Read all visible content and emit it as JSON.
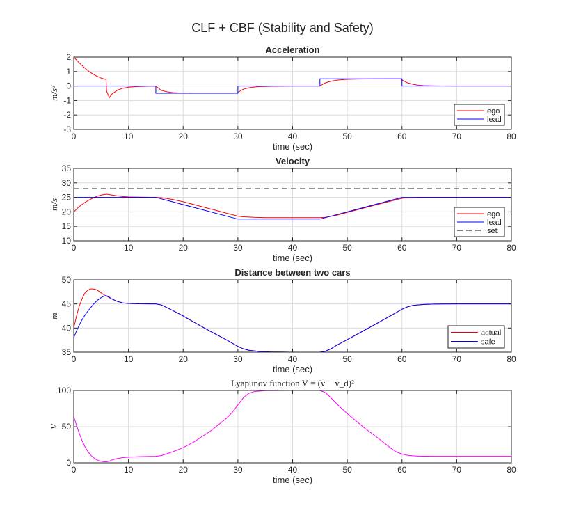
{
  "figure_title": "CLF + CBF (Stability and Safety)",
  "colors": {
    "ego": "#ff0000",
    "lead": "#0000ff",
    "set": "#555555",
    "lyapunov": "#ff00ff"
  },
  "chart_data": [
    {
      "type": "line",
      "title": "Acceleration",
      "xlabel": "time (sec)",
      "ylabel": "m/s²",
      "xlim": [
        0,
        80
      ],
      "ylim": [
        -3,
        2
      ],
      "xticks": [
        "0",
        "10",
        "20",
        "30",
        "40",
        "50",
        "60",
        "70",
        "80"
      ],
      "yticks": [
        "-3",
        "-2",
        "-1",
        "0",
        "1",
        "2"
      ],
      "grid": true,
      "legend_position": "bottom-right",
      "series": [
        {
          "name": "ego",
          "color": "#ff0000",
          "x": [
            0,
            1,
            2,
            3,
            4,
            5,
            5.9,
            6,
            6.5,
            7,
            8,
            9,
            10,
            11,
            12,
            13,
            14,
            15,
            15.5,
            16,
            17,
            18,
            19,
            20,
            22,
            25,
            28,
            29.9,
            30,
            30.5,
            31,
            32,
            33,
            34,
            36,
            40,
            44,
            45,
            45.5,
            46,
            47,
            48,
            49,
            50,
            52,
            55,
            58,
            59.9,
            60,
            60.5,
            61,
            62,
            63,
            64,
            66,
            70,
            75,
            80
          ],
          "y": [
            2.0,
            1.6,
            1.25,
            0.95,
            0.72,
            0.55,
            0.45,
            -0.35,
            -0.8,
            -0.55,
            -0.28,
            -0.15,
            -0.08,
            -0.05,
            -0.03,
            -0.02,
            -0.01,
            0.0,
            -0.15,
            -0.3,
            -0.4,
            -0.45,
            -0.48,
            -0.49,
            -0.5,
            -0.5,
            -0.5,
            -0.5,
            -0.45,
            -0.32,
            -0.22,
            -0.12,
            -0.07,
            -0.04,
            -0.02,
            0.0,
            0.0,
            0.0,
            0.12,
            0.22,
            0.33,
            0.4,
            0.44,
            0.46,
            0.48,
            0.49,
            0.5,
            0.5,
            0.42,
            0.32,
            0.22,
            0.12,
            0.06,
            0.03,
            0.01,
            0.0,
            0.0,
            0.0
          ]
        },
        {
          "name": "lead",
          "color": "#0000ff",
          "x": [
            0,
            15,
            15,
            30,
            30,
            45,
            45,
            60,
            60,
            80
          ],
          "y": [
            0,
            0,
            -0.5,
            -0.5,
            0,
            0,
            0.5,
            0.5,
            0,
            0
          ]
        }
      ]
    },
    {
      "type": "line",
      "title": "Velocity",
      "xlabel": "time (sec)",
      "ylabel": "m/s",
      "xlim": [
        0,
        80
      ],
      "ylim": [
        10,
        35
      ],
      "xticks": [
        "0",
        "10",
        "20",
        "30",
        "40",
        "50",
        "60",
        "70",
        "80"
      ],
      "yticks": [
        "10",
        "15",
        "20",
        "25",
        "30",
        "35"
      ],
      "grid": true,
      "legend_position": "bottom-right",
      "series": [
        {
          "name": "ego",
          "color": "#ff0000",
          "x": [
            0,
            1,
            2,
            3,
            4,
            5,
            6,
            7,
            8,
            9,
            10,
            11,
            13,
            15,
            16,
            18,
            20,
            25,
            30,
            31,
            33,
            35,
            40,
            45,
            46,
            48,
            50,
            55,
            60,
            61,
            63,
            65,
            70,
            80
          ],
          "y": [
            20,
            21.8,
            23.2,
            24.3,
            25.2,
            25.8,
            26.1,
            25.8,
            25.5,
            25.3,
            25.15,
            25.1,
            25.05,
            25.0,
            24.9,
            24.3,
            23.5,
            21.0,
            18.5,
            18.3,
            18.1,
            18.0,
            18.0,
            18.0,
            18.1,
            18.8,
            19.8,
            22.3,
            24.7,
            24.85,
            24.95,
            25.0,
            25.0,
            25.0
          ]
        },
        {
          "name": "lead",
          "color": "#0000ff",
          "x": [
            0,
            15,
            30,
            45,
            60,
            80
          ],
          "y": [
            25,
            25,
            17.5,
            17.5,
            25,
            25
          ]
        },
        {
          "name": "set",
          "color": "#555555",
          "dashed": true,
          "x": [
            0,
            80
          ],
          "y": [
            28,
            28
          ]
        }
      ]
    },
    {
      "type": "line",
      "title": "Distance between two cars",
      "xlabel": "time (sec)",
      "ylabel": "m",
      "xlim": [
        0,
        80
      ],
      "ylim": [
        35,
        50
      ],
      "xticks": [
        "0",
        "10",
        "20",
        "30",
        "40",
        "50",
        "60",
        "70",
        "80"
      ],
      "yticks": [
        "35",
        "40",
        "45",
        "50"
      ],
      "grid": true,
      "legend_position": "bottom-right",
      "series": [
        {
          "name": "actual",
          "color": "#ff0000",
          "x": [
            0,
            0.5,
            1,
            1.5,
            2,
            2.5,
            3,
            3.5,
            4,
            4.5,
            5,
            5.5,
            6,
            6.5,
            7,
            8,
            9,
            10,
            12,
            14,
            15,
            16,
            18,
            20,
            22,
            25,
            28,
            30,
            31,
            32,
            34,
            36,
            40,
            44,
            45,
            46,
            47,
            48,
            50,
            55,
            58,
            60,
            61,
            62,
            64,
            66,
            70,
            80
          ],
          "y": [
            40.0,
            42.5,
            44.5,
            46.0,
            47.2,
            47.8,
            48.1,
            48.1,
            48.0,
            47.7,
            47.3,
            46.9,
            46.6,
            46.3,
            46.0,
            45.5,
            45.2,
            45.1,
            45.02,
            45.0,
            45.0,
            44.8,
            43.7,
            42.5,
            41.2,
            39.3,
            37.5,
            36.2,
            35.7,
            35.4,
            35.15,
            35.05,
            35.0,
            35.0,
            35.0,
            35.2,
            35.7,
            36.4,
            37.6,
            40.7,
            42.6,
            43.9,
            44.4,
            44.7,
            44.9,
            44.97,
            45.0,
            45.0
          ]
        },
        {
          "name": "safe",
          "color": "#0000ff",
          "x": [
            0,
            0.5,
            1,
            1.5,
            2,
            2.5,
            3,
            3.5,
            4,
            4.5,
            5,
            5.5,
            6,
            6.5,
            7,
            8,
            9,
            10,
            12,
            14,
            15,
            16,
            18,
            20,
            22,
            25,
            28,
            30,
            31,
            32,
            34,
            36,
            40,
            44,
            45,
            46,
            47,
            48,
            50,
            55,
            58,
            60,
            61,
            62,
            64,
            66,
            70,
            80
          ],
          "y": [
            38.0,
            39.4,
            40.6,
            41.7,
            42.6,
            43.4,
            44.1,
            44.8,
            45.4,
            45.9,
            46.3,
            46.6,
            46.7,
            46.4,
            46.0,
            45.5,
            45.2,
            45.1,
            45.02,
            45.0,
            45.0,
            44.8,
            43.7,
            42.5,
            41.2,
            39.3,
            37.5,
            36.2,
            35.7,
            35.4,
            35.15,
            35.05,
            35.0,
            35.0,
            35.0,
            35.2,
            35.7,
            36.4,
            37.6,
            40.7,
            42.6,
            43.9,
            44.4,
            44.7,
            44.9,
            44.97,
            45.0,
            45.0
          ]
        }
      ]
    },
    {
      "type": "line",
      "title": "Lyapunov function V = (v − v_d)²",
      "xlabel": "time (sec)",
      "ylabel": "V",
      "xlim": [
        0,
        80
      ],
      "ylim": [
        0,
        100
      ],
      "xticks": [
        "0",
        "10",
        "20",
        "30",
        "40",
        "50",
        "60",
        "70",
        "80"
      ],
      "yticks": [
        "0",
        "50",
        "100"
      ],
      "grid": true,
      "series": [
        {
          "name": "V",
          "color": "#ff00ff",
          "x": [
            0,
            0.5,
            1,
            1.5,
            2,
            2.5,
            3,
            3.5,
            4,
            4.5,
            5,
            5.5,
            6,
            6.5,
            7,
            8,
            9,
            10,
            12,
            14,
            15,
            16,
            18,
            20,
            22,
            25,
            28,
            29,
            30,
            31,
            32,
            33,
            35,
            40,
            45,
            46,
            47,
            48,
            50,
            53,
            56,
            58,
            59,
            60,
            61,
            62,
            63,
            64,
            66,
            70,
            80
          ],
          "y": [
            64,
            52,
            41,
            31,
            23,
            16.5,
            11.5,
            7.8,
            5.0,
            3.2,
            2.2,
            1.6,
            1.5,
            2.3,
            4.0,
            6.0,
            7.2,
            7.8,
            8.5,
            8.9,
            9.0,
            10.0,
            15.0,
            21.0,
            29.0,
            44.0,
            62.0,
            70.0,
            80.0,
            90.0,
            96.0,
            98.5,
            99.8,
            100.0,
            100.0,
            97.0,
            90.0,
            82.0,
            68.0,
            49.0,
            32.0,
            20.0,
            15.0,
            12.0,
            10.5,
            9.7,
            9.3,
            9.15,
            9.05,
            9.0,
            9.0
          ]
        }
      ]
    }
  ]
}
